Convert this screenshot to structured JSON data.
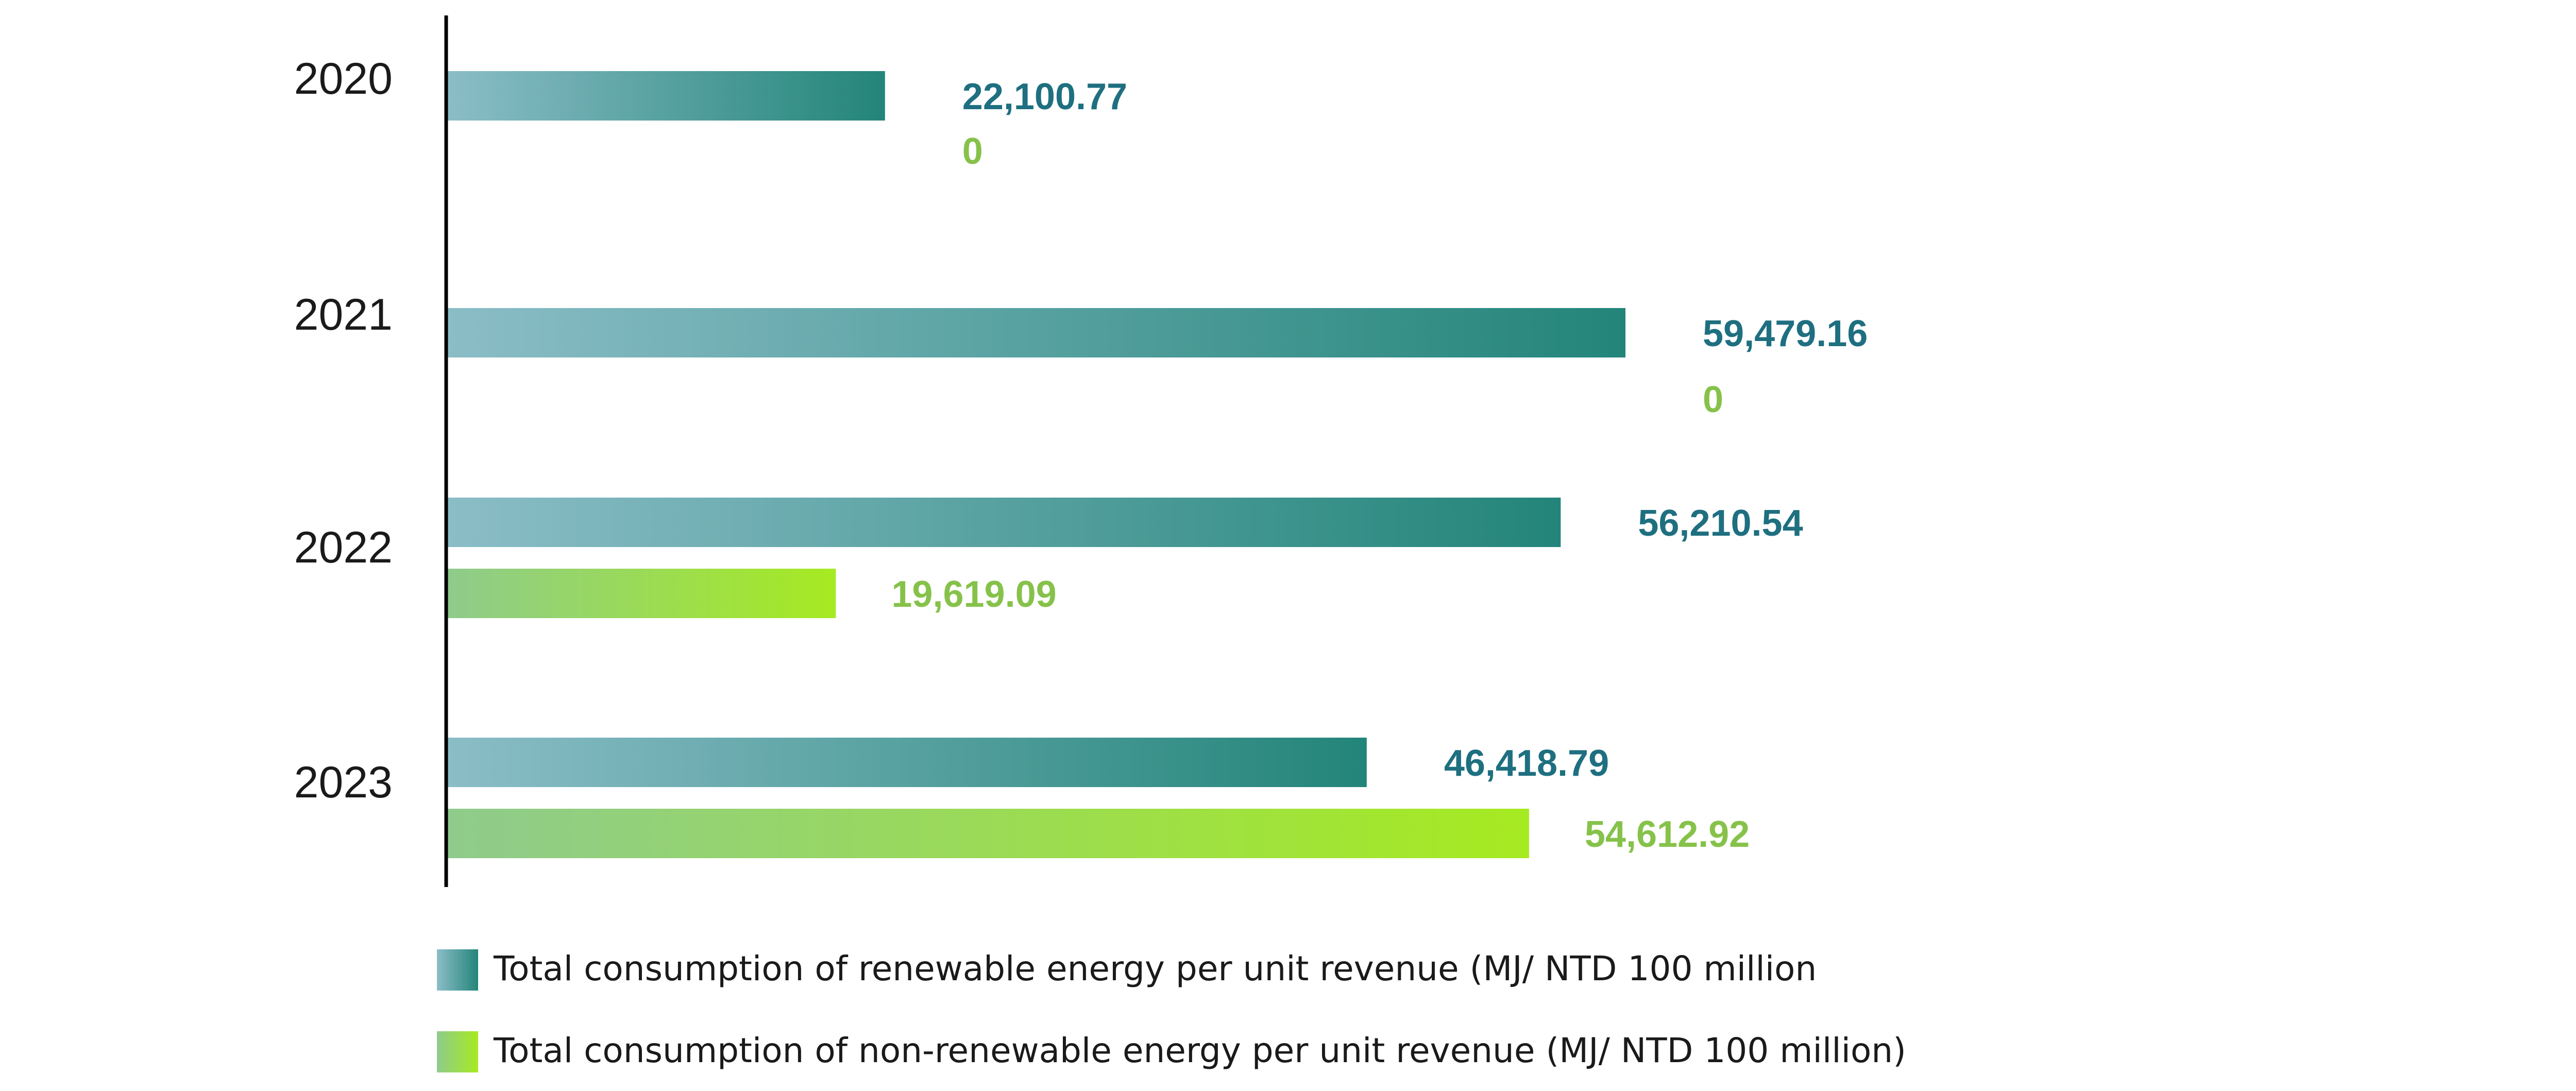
{
  "colors": {
    "renewable_start": "#8BBDC7",
    "renewable_end": "#23857A",
    "renewable_label": "#1E6F80",
    "nonrenewable_start": "#8FCB8C",
    "nonrenewable_end": "#A6EA21",
    "nonrenewable_label": "#86C24A",
    "axis": "#000000"
  },
  "chart_data": {
    "type": "bar",
    "orientation": "horizontal",
    "categories": [
      "2020",
      "2021",
      "2022",
      "2023"
    ],
    "series": [
      {
        "name": "Total consumption of renewable energy per unit revenue (MJ/ NTD 100 million",
        "values": [
          22100.77,
          59479.16,
          56210.54,
          46418.79
        ],
        "labels": [
          "22,100.77",
          "59,479.16",
          "56,210.54",
          "46,418.79"
        ]
      },
      {
        "name": "Total consumption of non-renewable energy per unit revenue (MJ/ NTD 100 million)",
        "values": [
          0,
          0,
          19619.09,
          54612.92
        ],
        "labels": [
          "0",
          "0",
          "19,619.09",
          "54,612.92"
        ]
      }
    ],
    "legend_position": "bottom-left",
    "grid": false
  }
}
